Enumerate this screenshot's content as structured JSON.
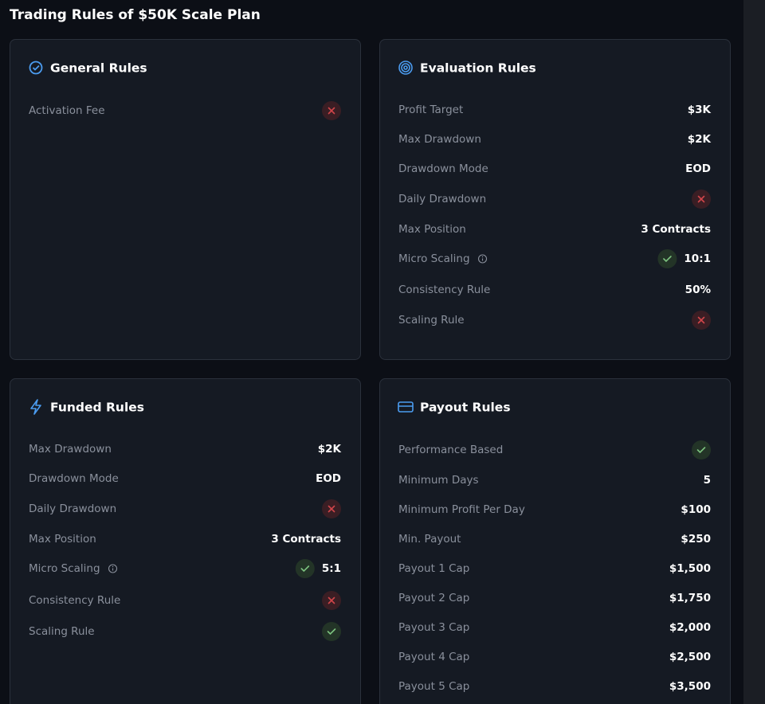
{
  "header": {
    "title": "Trading Rules of $50K Scale Plan"
  },
  "cards": [
    {
      "title": "General Rules",
      "rows": [
        {
          "label": "Activation Fee",
          "status": "cross"
        }
      ]
    },
    {
      "title": "Evaluation Rules",
      "rows": [
        {
          "label": "Profit Target",
          "value": "$3K"
        },
        {
          "label": "Max Drawdown",
          "value": "$2K"
        },
        {
          "label": "Drawdown Mode",
          "value": "EOD"
        },
        {
          "label": "Daily Drawdown",
          "status": "cross"
        },
        {
          "label": "Max Position",
          "value": "3 Contracts"
        },
        {
          "label": "Micro Scaling",
          "info": true,
          "status": "check",
          "value": "10:1"
        },
        {
          "label": "Consistency Rule",
          "value": "50%"
        },
        {
          "label": "Scaling Rule",
          "status": "cross"
        }
      ]
    },
    {
      "title": "Funded Rules",
      "rows": [
        {
          "label": "Max Drawdown",
          "value": "$2K"
        },
        {
          "label": "Drawdown Mode",
          "value": "EOD"
        },
        {
          "label": "Daily Drawdown",
          "status": "cross"
        },
        {
          "label": "Max Position",
          "value": "3 Contracts"
        },
        {
          "label": "Micro Scaling",
          "info": true,
          "status": "check",
          "value": "5:1"
        },
        {
          "label": "Consistency Rule",
          "status": "cross"
        },
        {
          "label": "Scaling Rule",
          "status": "check"
        }
      ]
    },
    {
      "title": "Payout Rules",
      "rows": [
        {
          "label": "Performance Based",
          "status": "check"
        },
        {
          "label": "Minimum Days",
          "value": "5"
        },
        {
          "label": "Minimum Profit Per Day",
          "value": "$100"
        },
        {
          "label": "Min. Payout",
          "value": "$250"
        },
        {
          "label": "Payout 1 Cap",
          "value": "$1,500"
        },
        {
          "label": "Payout 2 Cap",
          "value": "$1,750"
        },
        {
          "label": "Payout 3 Cap",
          "value": "$2,000"
        },
        {
          "label": "Payout 4 Cap",
          "value": "$2,500"
        },
        {
          "label": "Payout 5 Cap",
          "value": "$3,500"
        }
      ]
    }
  ]
}
